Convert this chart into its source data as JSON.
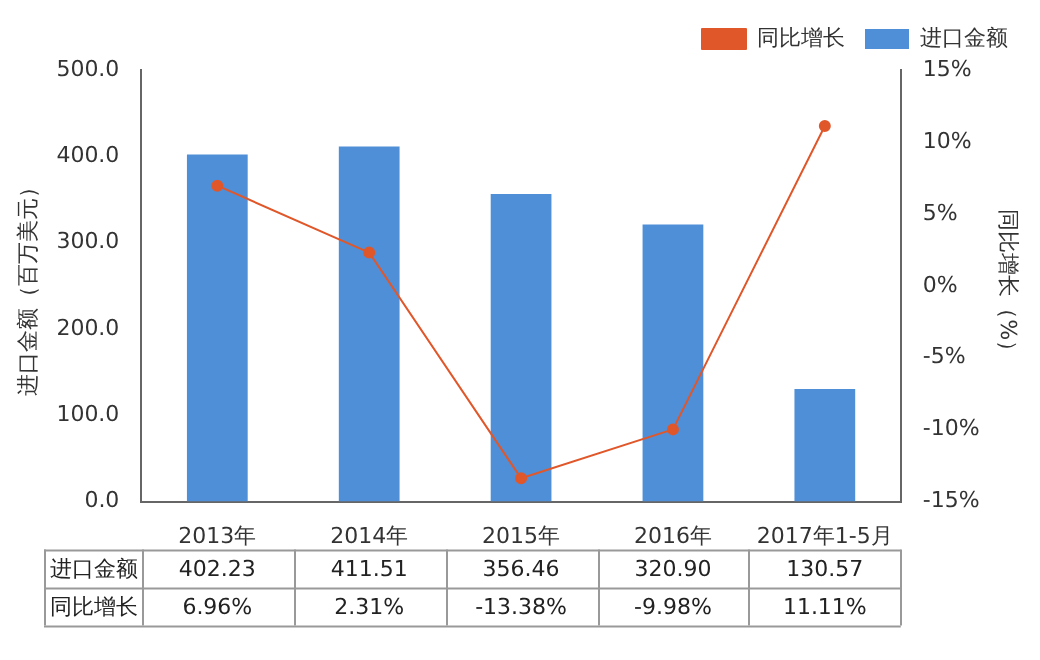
{
  "chart_data": {
    "type": "bar",
    "categories": [
      "2013年",
      "2014年",
      "2015年",
      "2016年",
      "2017年1-5月"
    ],
    "ylabel": "进口金额（百万美元）",
    "y2label": "同比增长（%）",
    "series": [
      {
        "name": "进口金额",
        "color": "#4f8fd8",
        "values": [
          402.23,
          411.51,
          356.46,
          320.9,
          130.57
        ],
        "value_labels": [
          "402.23",
          "411.51",
          "356.46",
          "320.90",
          "130.57"
        ]
      },
      {
        "name": "同比增长",
        "type": "line",
        "axis": "y2",
        "color": "#e0572a",
        "values": [
          6.96,
          2.31,
          -13.38,
          -9.98,
          11.11
        ],
        "value_labels": [
          "6.96%",
          "2.31%",
          "-13.38%",
          "-9.98%",
          "11.11%"
        ]
      }
    ],
    "ylim": [
      0,
      500
    ],
    "yticks": [
      {
        "value": 0,
        "label": "0.0"
      },
      {
        "value": 100,
        "label": "100.0"
      },
      {
        "value": 200,
        "label": "200.0"
      },
      {
        "value": 300,
        "label": "300.0"
      },
      {
        "value": 400,
        "label": "400.0"
      },
      {
        "value": 500,
        "label": "500.0"
      }
    ],
    "y2lim": [
      -15,
      15
    ],
    "y2ticks": [
      {
        "value": -15,
        "label": "-15%"
      },
      {
        "value": -10,
        "label": "-10%"
      },
      {
        "value": -5,
        "label": "-5%"
      },
      {
        "value": 0,
        "label": "0%"
      },
      {
        "value": 5,
        "label": "5%"
      },
      {
        "value": 10,
        "label": "10%"
      },
      {
        "value": 15,
        "label": "15%"
      }
    ],
    "grid": false,
    "legend": "top right",
    "marker": "circle",
    "line_style": "solid"
  }
}
